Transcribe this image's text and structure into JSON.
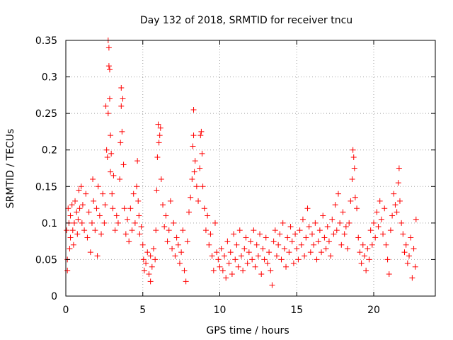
{
  "chart_data": {
    "type": "scatter",
    "title": "Day 132 of 2018, SRMTID for receiver tncu",
    "xlabel": "GPS time / hours",
    "ylabel": "SRMTID / TECUs",
    "xlim": [
      0,
      24
    ],
    "ylim": [
      0,
      0.35
    ],
    "xticks": [
      0,
      5,
      10,
      15,
      20
    ],
    "xtick_labels": [
      "0",
      "5",
      "10",
      "15",
      "20"
    ],
    "yticks": [
      0,
      0.05,
      0.1,
      0.15,
      0.2,
      0.25,
      0.3,
      0.35
    ],
    "ytick_labels": [
      "0",
      "0.05",
      "0.1",
      "0.15",
      "0.2",
      "0.25",
      "0.3",
      "0.35"
    ],
    "grid": true,
    "marker": "+",
    "color": "#ff0000",
    "series": [
      {
        "name": "SRMTID",
        "points": [
          [
            0.05,
            0.09
          ],
          [
            0.1,
            0.05
          ],
          [
            0.1,
            0.035
          ],
          [
            0.15,
            0.12
          ],
          [
            0.2,
            0.1
          ],
          [
            0.25,
            0.065
          ],
          [
            0.3,
            0.08
          ],
          [
            0.3,
            0.11
          ],
          [
            0.4,
            0.125
          ],
          [
            0.45,
            0.09
          ],
          [
            0.5,
            0.07
          ],
          [
            0.55,
            0.1
          ],
          [
            0.6,
            0.13
          ],
          [
            0.7,
            0.115
          ],
          [
            0.75,
            0.085
          ],
          [
            0.8,
            0.105
          ],
          [
            0.85,
            0.145
          ],
          [
            0.9,
            0.12
          ],
          [
            1.0,
            0.15
          ],
          [
            1.05,
            0.1
          ],
          [
            1.1,
            0.125
          ],
          [
            1.2,
            0.09
          ],
          [
            1.3,
            0.14
          ],
          [
            1.4,
            0.08
          ],
          [
            1.5,
            0.115
          ],
          [
            1.6,
            0.06
          ],
          [
            1.7,
            0.1
          ],
          [
            1.75,
            0.16
          ],
          [
            1.8,
            0.13
          ],
          [
            1.9,
            0.09
          ],
          [
            2.0,
            0.12
          ],
          [
            2.05,
            0.055
          ],
          [
            2.1,
            0.15
          ],
          [
            2.2,
            0.11
          ],
          [
            2.3,
            0.085
          ],
          [
            2.4,
            0.14
          ],
          [
            2.5,
            0.1
          ],
          [
            2.55,
            0.125
          ],
          [
            2.6,
            0.26
          ],
          [
            2.65,
            0.2
          ],
          [
            2.7,
            0.19
          ],
          [
            2.75,
            0.25
          ],
          [
            2.75,
            0.35
          ],
          [
            2.8,
            0.34
          ],
          [
            2.8,
            0.315
          ],
          [
            2.85,
            0.31
          ],
          [
            2.85,
            0.27
          ],
          [
            2.9,
            0.22
          ],
          [
            2.9,
            0.17
          ],
          [
            2.95,
            0.195
          ],
          [
            3.0,
            0.14
          ],
          [
            3.05,
            0.12
          ],
          [
            3.1,
            0.165
          ],
          [
            3.2,
            0.09
          ],
          [
            3.3,
            0.11
          ],
          [
            3.4,
            0.1
          ],
          [
            3.5,
            0.16
          ],
          [
            3.55,
            0.21
          ],
          [
            3.6,
            0.26
          ],
          [
            3.6,
            0.285
          ],
          [
            3.65,
            0.225
          ],
          [
            3.7,
            0.27
          ],
          [
            3.75,
            0.18
          ],
          [
            3.8,
            0.12
          ],
          [
            3.9,
            0.085
          ],
          [
            4.0,
            0.105
          ],
          [
            4.1,
            0.075
          ],
          [
            4.2,
            0.12
          ],
          [
            4.3,
            0.09
          ],
          [
            4.4,
            0.14
          ],
          [
            4.5,
            0.1
          ],
          [
            4.6,
            0.15
          ],
          [
            4.65,
            0.185
          ],
          [
            4.7,
            0.13
          ],
          [
            4.75,
            0.11
          ],
          [
            4.8,
            0.085
          ],
          [
            4.9,
            0.095
          ],
          [
            5.0,
            0.07
          ],
          [
            5.05,
            0.05
          ],
          [
            5.1,
            0.035
          ],
          [
            5.2,
            0.045
          ],
          [
            5.3,
            0.06
          ],
          [
            5.4,
            0.03
          ],
          [
            5.5,
            0.055
          ],
          [
            5.5,
            0.02
          ],
          [
            5.6,
            0.04
          ],
          [
            5.7,
            0.065
          ],
          [
            5.8,
            0.05
          ],
          [
            5.85,
            0.09
          ],
          [
            5.9,
            0.145
          ],
          [
            5.95,
            0.19
          ],
          [
            6.0,
            0.235
          ],
          [
            6.05,
            0.21
          ],
          [
            6.1,
            0.22
          ],
          [
            6.15,
            0.23
          ],
          [
            6.2,
            0.16
          ],
          [
            6.3,
            0.125
          ],
          [
            6.4,
            0.095
          ],
          [
            6.5,
            0.11
          ],
          [
            6.6,
            0.075
          ],
          [
            6.7,
            0.09
          ],
          [
            6.8,
            0.13
          ],
          [
            6.9,
            0.065
          ],
          [
            7.0,
            0.1
          ],
          [
            7.1,
            0.055
          ],
          [
            7.2,
            0.08
          ],
          [
            7.3,
            0.07
          ],
          [
            7.4,
            0.045
          ],
          [
            7.5,
            0.06
          ],
          [
            7.6,
            0.09
          ],
          [
            7.7,
            0.035
          ],
          [
            7.8,
            0.02
          ],
          [
            7.9,
            0.075
          ],
          [
            8.0,
            0.115
          ],
          [
            8.1,
            0.135
          ],
          [
            8.2,
            0.16
          ],
          [
            8.25,
            0.205
          ],
          [
            8.3,
            0.255
          ],
          [
            8.3,
            0.22
          ],
          [
            8.35,
            0.17
          ],
          [
            8.4,
            0.185
          ],
          [
            8.5,
            0.15
          ],
          [
            8.6,
            0.13
          ],
          [
            8.7,
            0.175
          ],
          [
            8.75,
            0.22
          ],
          [
            8.8,
            0.225
          ],
          [
            8.85,
            0.195
          ],
          [
            8.9,
            0.15
          ],
          [
            9.0,
            0.12
          ],
          [
            9.1,
            0.09
          ],
          [
            9.2,
            0.11
          ],
          [
            9.3,
            0.07
          ],
          [
            9.4,
            0.085
          ],
          [
            9.5,
            0.055
          ],
          [
            9.6,
            0.035
          ],
          [
            9.7,
            0.1
          ],
          [
            9.8,
            0.06
          ],
          [
            9.9,
            0.05
          ],
          [
            10.0,
            0.04
          ],
          [
            10.1,
            0.065
          ],
          [
            10.2,
            0.035
          ],
          [
            10.3,
            0.055
          ],
          [
            10.4,
            0.025
          ],
          [
            10.5,
            0.075
          ],
          [
            10.6,
            0.045
          ],
          [
            10.7,
            0.06
          ],
          [
            10.8,
            0.03
          ],
          [
            10.9,
            0.085
          ],
          [
            11.0,
            0.05
          ],
          [
            11.1,
            0.07
          ],
          [
            11.2,
            0.04
          ],
          [
            11.3,
            0.09
          ],
          [
            11.4,
            0.055
          ],
          [
            11.5,
            0.035
          ],
          [
            11.6,
            0.065
          ],
          [
            11.7,
            0.08
          ],
          [
            11.8,
            0.045
          ],
          [
            11.9,
            0.06
          ],
          [
            12.0,
            0.075
          ],
          [
            12.1,
            0.05
          ],
          [
            12.2,
            0.09
          ],
          [
            12.3,
            0.04
          ],
          [
            12.4,
            0.07
          ],
          [
            12.5,
            0.055
          ],
          [
            12.6,
            0.085
          ],
          [
            12.7,
            0.03
          ],
          [
            12.8,
            0.065
          ],
          [
            12.9,
            0.05
          ],
          [
            13.0,
            0.08
          ],
          [
            13.1,
            0.045
          ],
          [
            13.2,
            0.06
          ],
          [
            13.3,
            0.035
          ],
          [
            13.4,
            0.015
          ],
          [
            13.5,
            0.075
          ],
          [
            13.6,
            0.09
          ],
          [
            13.7,
            0.055
          ],
          [
            13.8,
            0.07
          ],
          [
            13.9,
            0.085
          ],
          [
            14.0,
            0.05
          ],
          [
            14.1,
            0.1
          ],
          [
            14.2,
            0.065
          ],
          [
            14.3,
            0.04
          ],
          [
            14.4,
            0.08
          ],
          [
            14.5,
            0.06
          ],
          [
            14.6,
            0.095
          ],
          [
            14.7,
            0.075
          ],
          [
            14.8,
            0.045
          ],
          [
            14.9,
            0.085
          ],
          [
            15.0,
            0.065
          ],
          [
            15.1,
            0.05
          ],
          [
            15.2,
            0.09
          ],
          [
            15.3,
            0.07
          ],
          [
            15.4,
            0.105
          ],
          [
            15.5,
            0.055
          ],
          [
            15.6,
            0.08
          ],
          [
            15.7,
            0.12
          ],
          [
            15.8,
            0.095
          ],
          [
            15.9,
            0.06
          ],
          [
            16.0,
            0.085
          ],
          [
            16.1,
            0.07
          ],
          [
            16.2,
            0.1
          ],
          [
            16.3,
            0.05
          ],
          [
            16.4,
            0.075
          ],
          [
            16.5,
            0.09
          ],
          [
            16.6,
            0.06
          ],
          [
            16.7,
            0.11
          ],
          [
            16.8,
            0.08
          ],
          [
            16.9,
            0.065
          ],
          [
            17.0,
            0.095
          ],
          [
            17.1,
            0.075
          ],
          [
            17.2,
            0.055
          ],
          [
            17.3,
            0.105
          ],
          [
            17.4,
            0.085
          ],
          [
            17.5,
            0.125
          ],
          [
            17.6,
            0.09
          ],
          [
            17.7,
            0.14
          ],
          [
            17.8,
            0.1
          ],
          [
            17.9,
            0.07
          ],
          [
            18.0,
            0.115
          ],
          [
            18.1,
            0.085
          ],
          [
            18.2,
            0.095
          ],
          [
            18.3,
            0.065
          ],
          [
            18.4,
            0.1
          ],
          [
            18.5,
            0.13
          ],
          [
            18.6,
            0.16
          ],
          [
            18.65,
            0.2
          ],
          [
            18.7,
            0.19
          ],
          [
            18.75,
            0.175
          ],
          [
            18.8,
            0.135
          ],
          [
            18.9,
            0.12
          ],
          [
            19.0,
            0.08
          ],
          [
            19.1,
            0.06
          ],
          [
            19.2,
            0.045
          ],
          [
            19.3,
            0.07
          ],
          [
            19.4,
            0.055
          ],
          [
            19.5,
            0.035
          ],
          [
            19.6,
            0.065
          ],
          [
            19.7,
            0.05
          ],
          [
            19.8,
            0.09
          ],
          [
            19.9,
            0.07
          ],
          [
            20.0,
            0.1
          ],
          [
            20.1,
            0.08
          ],
          [
            20.2,
            0.115
          ],
          [
            20.3,
            0.095
          ],
          [
            20.4,
            0.13
          ],
          [
            20.5,
            0.105
          ],
          [
            20.6,
            0.085
          ],
          [
            20.7,
            0.12
          ],
          [
            20.8,
            0.07
          ],
          [
            20.9,
            0.05
          ],
          [
            21.0,
            0.03
          ],
          [
            21.1,
            0.09
          ],
          [
            21.2,
            0.11
          ],
          [
            21.3,
            0.14
          ],
          [
            21.4,
            0.125
          ],
          [
            21.5,
            0.115
          ],
          [
            21.6,
            0.155
          ],
          [
            21.65,
            0.175
          ],
          [
            21.7,
            0.13
          ],
          [
            21.8,
            0.1
          ],
          [
            21.9,
            0.085
          ],
          [
            22.0,
            0.06
          ],
          [
            22.1,
            0.07
          ],
          [
            22.2,
            0.045
          ],
          [
            22.3,
            0.055
          ],
          [
            22.4,
            0.08
          ],
          [
            22.5,
            0.025
          ],
          [
            22.6,
            0.065
          ],
          [
            22.7,
            0.04
          ],
          [
            22.75,
            0.105
          ]
        ]
      }
    ]
  }
}
